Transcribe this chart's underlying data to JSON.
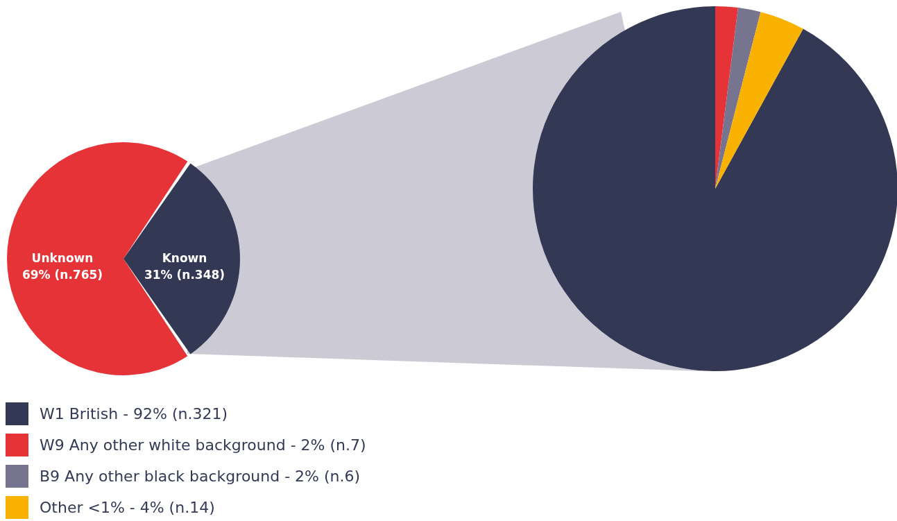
{
  "chart_data": [
    {
      "type": "pie",
      "categories": [
        "Unknown",
        "Known"
      ],
      "values": [
        69,
        31
      ],
      "colors": [
        "#e63338",
        "#333854"
      ],
      "value_labels": [
        "69% (n.765)",
        "31% (n.348)"
      ]
    },
    {
      "type": "pie",
      "categories": [
        "W1 British",
        "W9 Any other white background",
        "B9 Any other black background",
        "Other <1%"
      ],
      "values": [
        92,
        2,
        2,
        4
      ],
      "colors": [
        "#333854",
        "#e63338",
        "#77748f",
        "#f9b200"
      ],
      "value_labels": [
        "92% (n.321)",
        "2% (n.7)",
        "2% (n.6)",
        "4% (n.14)"
      ],
      "legend": "bottom left"
    }
  ]
}
